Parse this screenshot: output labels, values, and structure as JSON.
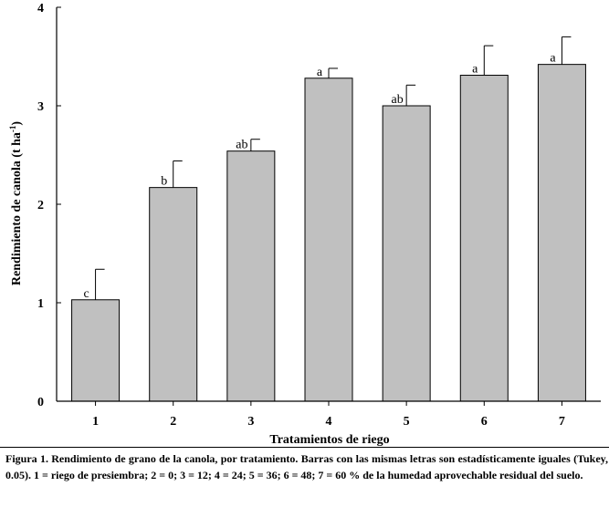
{
  "chart_data": {
    "type": "bar",
    "title": "",
    "xlabel": "Tratamientos de riego",
    "ylabel": "Rendimiento de canola (t ha",
    "ylabel_superscript": "-1",
    "ylabel_suffix": ")",
    "ylim": [
      0,
      4
    ],
    "yticks": [
      "0",
      "1",
      "2",
      "3",
      "4"
    ],
    "categories": [
      "1",
      "2",
      "3",
      "4",
      "5",
      "6",
      "7"
    ],
    "values": [
      1.03,
      2.17,
      2.54,
      3.28,
      3.0,
      3.31,
      3.42
    ],
    "errors": [
      0.31,
      0.27,
      0.12,
      0.1,
      0.21,
      0.3,
      0.28
    ],
    "significance": [
      "c",
      "b",
      "ab",
      "a",
      "ab",
      "a",
      "a"
    ],
    "bar_color": "#c0c0c0",
    "grid": false
  },
  "caption": "Figura 1. Rendimiento de grano de la canola, por tratamiento. Barras con las mismas letras son estadísticamente iguales (Tukey, 0.05). 1 = riego de presiembra; 2 = 0; 3 = 12; 4 = 24; 5 = 36; 6 = 48; 7 = 60 % de la humedad aprovechable residual del suelo."
}
